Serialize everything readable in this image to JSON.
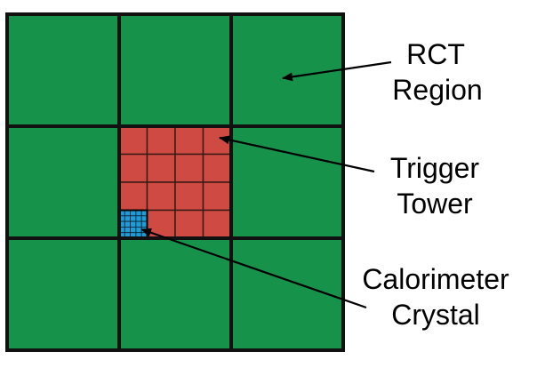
{
  "labels": {
    "rct_line1": "RCT",
    "rct_line2": "Region",
    "tower_line1": "Trigger",
    "tower_line2": "Tower",
    "crystal_line1": "Calorimeter",
    "crystal_line2": "Crystal"
  },
  "grid": {
    "region_rows": 3,
    "region_cols": 3,
    "towers_per_side": 4,
    "crystals_per_side": 5
  },
  "colors": {
    "region": "#17924a",
    "tower": "#cf4a43",
    "crystal": "#1f9bd6",
    "border": "#111111",
    "tower_line": "#3a1a14",
    "text": "#000000"
  }
}
